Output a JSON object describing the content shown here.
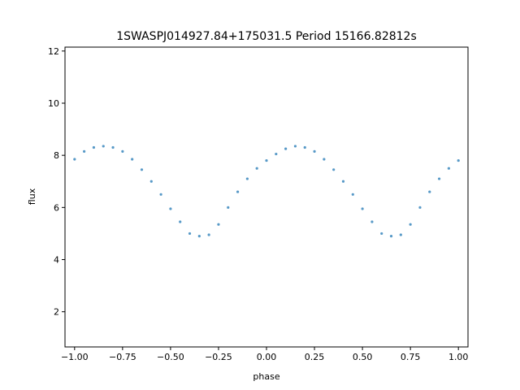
{
  "chart_data": {
    "type": "scatter",
    "title": "1SWASPJ014927.84+175031.5 Period 15166.82812s",
    "xlabel": "phase",
    "ylabel": "flux",
    "xlim": [
      -1.05,
      1.05
    ],
    "ylim": [
      0.65,
      12.15
    ],
    "xticks": [
      -1.0,
      -0.75,
      -0.5,
      -0.25,
      0.0,
      0.25,
      0.5,
      0.75,
      1.0
    ],
    "xtick_labels": [
      "−1.00",
      "−0.75",
      "−0.50",
      "−0.25",
      "0.00",
      "0.25",
      "0.50",
      "0.75",
      "1.00"
    ],
    "yticks": [
      2,
      4,
      6,
      8,
      10,
      12
    ],
    "ytick_labels": [
      "2",
      "4",
      "6",
      "8",
      "10",
      "12"
    ],
    "grid": false,
    "series_color": "#1f77b4",
    "series": [
      {
        "x": [
          -1.0,
          -0.95,
          -0.9,
          -0.85,
          -0.8,
          -0.75,
          -0.7,
          -0.65,
          -0.6,
          -0.55,
          -0.5,
          -0.45,
          -0.4,
          -0.35,
          -0.3,
          -0.25,
          -0.2,
          -0.15,
          -0.1,
          -0.05,
          0.0,
          0.05,
          0.1,
          0.15,
          0.2,
          0.25,
          0.3,
          0.35,
          0.4,
          0.45,
          0.5,
          0.55,
          0.6,
          0.65,
          0.7,
          0.75,
          0.8,
          0.85,
          0.9,
          0.95,
          1.0
        ],
        "y": [
          7.85,
          8.15,
          8.3,
          8.35,
          8.3,
          8.15,
          7.85,
          7.45,
          7.0,
          6.5,
          5.95,
          5.45,
          5.0,
          4.9,
          4.95,
          5.35,
          6.0,
          6.6,
          7.1,
          7.5,
          7.8,
          8.05,
          8.25,
          8.35,
          8.3,
          8.15,
          7.85,
          7.45,
          7.0,
          6.5,
          5.95,
          5.45,
          5.0,
          4.9,
          4.95,
          5.35,
          6.0,
          6.6,
          7.1,
          7.5,
          7.8
        ]
      }
    ]
  }
}
